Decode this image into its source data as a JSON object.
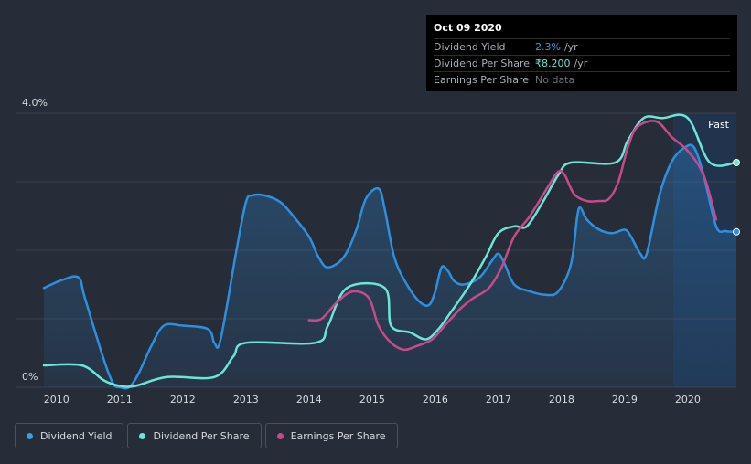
{
  "tooltip": {
    "date": "Oct 09 2020",
    "rows": [
      {
        "label": "Dividend Yield",
        "value": "2.3%",
        "unit": "/yr"
      },
      {
        "label": "Dividend Per Share",
        "value": "₹8.200",
        "unit": "/yr"
      },
      {
        "label": "Earnings Per Share",
        "value": "No data"
      }
    ]
  },
  "chart_data": {
    "type": "line",
    "y_axis_labels": [
      "4.0%",
      "0%"
    ],
    "ylim": [
      0,
      4.0
    ],
    "xlim": [
      2009.8,
      2020.77
    ],
    "x_ticks": [
      2010,
      2011,
      2012,
      2013,
      2014,
      2015,
      2016,
      2017,
      2018,
      2019,
      2020
    ],
    "x_tick_labels": [
      "2010",
      "2011",
      "2012",
      "2013",
      "2014",
      "2015",
      "2016",
      "2017",
      "2018",
      "2019",
      "2020"
    ],
    "grid": true,
    "past_label": "Past",
    "series": [
      {
        "name": "Dividend Yield",
        "color": "#2f8fdf",
        "fill": true,
        "points": [
          [
            2009.8,
            1.45
          ],
          [
            2010.1,
            1.57
          ],
          [
            2010.35,
            1.6
          ],
          [
            2010.45,
            1.3
          ],
          [
            2010.75,
            0.4
          ],
          [
            2010.9,
            0.05
          ],
          [
            2011.0,
            0.0
          ],
          [
            2011.15,
            0.0
          ],
          [
            2011.3,
            0.2
          ],
          [
            2011.5,
            0.6
          ],
          [
            2011.7,
            0.9
          ],
          [
            2012.0,
            0.9
          ],
          [
            2012.4,
            0.85
          ],
          [
            2012.5,
            0.65
          ],
          [
            2012.6,
            0.7
          ],
          [
            2012.85,
            2.0
          ],
          [
            2013.0,
            2.7
          ],
          [
            2013.1,
            2.8
          ],
          [
            2013.3,
            2.8
          ],
          [
            2013.55,
            2.7
          ],
          [
            2013.75,
            2.5
          ],
          [
            2014.0,
            2.2
          ],
          [
            2014.15,
            1.9
          ],
          [
            2014.3,
            1.75
          ],
          [
            2014.55,
            1.9
          ],
          [
            2014.75,
            2.3
          ],
          [
            2014.9,
            2.75
          ],
          [
            2015.1,
            2.9
          ],
          [
            2015.2,
            2.6
          ],
          [
            2015.35,
            1.9
          ],
          [
            2015.55,
            1.5
          ],
          [
            2015.75,
            1.25
          ],
          [
            2015.9,
            1.2
          ],
          [
            2016.0,
            1.4
          ],
          [
            2016.1,
            1.75
          ],
          [
            2016.2,
            1.7
          ],
          [
            2016.3,
            1.55
          ],
          [
            2016.45,
            1.5
          ],
          [
            2016.7,
            1.6
          ],
          [
            2016.9,
            1.85
          ],
          [
            2017.0,
            1.95
          ],
          [
            2017.1,
            1.8
          ],
          [
            2017.25,
            1.5
          ],
          [
            2017.5,
            1.4
          ],
          [
            2017.75,
            1.35
          ],
          [
            2017.95,
            1.4
          ],
          [
            2018.15,
            1.8
          ],
          [
            2018.25,
            2.5
          ],
          [
            2018.3,
            2.62
          ],
          [
            2018.4,
            2.45
          ],
          [
            2018.6,
            2.3
          ],
          [
            2018.8,
            2.25
          ],
          [
            2019.0,
            2.3
          ],
          [
            2019.1,
            2.2
          ],
          [
            2019.25,
            1.95
          ],
          [
            2019.35,
            1.95
          ],
          [
            2019.55,
            2.8
          ],
          [
            2019.75,
            3.3
          ],
          [
            2019.95,
            3.5
          ],
          [
            2020.1,
            3.5
          ],
          [
            2020.25,
            3.1
          ],
          [
            2020.45,
            2.35
          ],
          [
            2020.6,
            2.28
          ],
          [
            2020.77,
            2.27
          ]
        ]
      },
      {
        "name": "Dividend Per Share",
        "color": "#6de5d6",
        "fill": false,
        "points": [
          [
            2009.8,
            0.32
          ],
          [
            2010.4,
            0.32
          ],
          [
            2010.75,
            0.1
          ],
          [
            2011.0,
            0.02
          ],
          [
            2011.25,
            0.02
          ],
          [
            2011.75,
            0.15
          ],
          [
            2012.5,
            0.15
          ],
          [
            2012.8,
            0.45
          ],
          [
            2013.0,
            0.65
          ],
          [
            2014.1,
            0.65
          ],
          [
            2014.3,
            0.9
          ],
          [
            2014.6,
            1.45
          ],
          [
            2015.2,
            1.45
          ],
          [
            2015.3,
            0.9
          ],
          [
            2015.6,
            0.8
          ],
          [
            2015.85,
            0.7
          ],
          [
            2016.05,
            0.85
          ],
          [
            2016.25,
            1.1
          ],
          [
            2016.55,
            1.5
          ],
          [
            2016.8,
            1.9
          ],
          [
            2017.0,
            2.25
          ],
          [
            2017.25,
            2.35
          ],
          [
            2017.45,
            2.35
          ],
          [
            2017.7,
            2.7
          ],
          [
            2017.95,
            3.1
          ],
          [
            2018.15,
            3.28
          ],
          [
            2018.85,
            3.28
          ],
          [
            2019.05,
            3.6
          ],
          [
            2019.3,
            3.93
          ],
          [
            2019.6,
            3.93
          ],
          [
            2020.0,
            3.93
          ],
          [
            2020.35,
            3.28
          ],
          [
            2020.77,
            3.28
          ]
        ]
      },
      {
        "name": "Earnings Per Share",
        "color": "#c94a8a",
        "fill": false,
        "points": [
          [
            2014.0,
            0.98
          ],
          [
            2014.2,
            1.0
          ],
          [
            2014.45,
            1.25
          ],
          [
            2014.7,
            1.4
          ],
          [
            2014.95,
            1.3
          ],
          [
            2015.1,
            0.9
          ],
          [
            2015.3,
            0.65
          ],
          [
            2015.5,
            0.55
          ],
          [
            2015.7,
            0.6
          ],
          [
            2015.95,
            0.7
          ],
          [
            2016.15,
            0.9
          ],
          [
            2016.4,
            1.15
          ],
          [
            2016.6,
            1.3
          ],
          [
            2016.85,
            1.45
          ],
          [
            2017.05,
            1.75
          ],
          [
            2017.25,
            2.2
          ],
          [
            2017.5,
            2.5
          ],
          [
            2017.8,
            2.95
          ],
          [
            2017.95,
            3.15
          ],
          [
            2018.05,
            3.1
          ],
          [
            2018.2,
            2.82
          ],
          [
            2018.4,
            2.72
          ],
          [
            2018.6,
            2.72
          ],
          [
            2018.75,
            2.75
          ],
          [
            2018.9,
            3.0
          ],
          [
            2019.05,
            3.5
          ],
          [
            2019.2,
            3.8
          ],
          [
            2019.5,
            3.88
          ],
          [
            2019.75,
            3.65
          ],
          [
            2020.0,
            3.45
          ],
          [
            2020.25,
            3.1
          ],
          [
            2020.45,
            2.45
          ]
        ]
      }
    ]
  },
  "legend": [
    {
      "label": "Dividend Yield",
      "color": "#3b9de2"
    },
    {
      "label": "Dividend Per Share",
      "color": "#6de5d6"
    },
    {
      "label": "Earnings Per Share",
      "color": "#c94a8a"
    }
  ]
}
